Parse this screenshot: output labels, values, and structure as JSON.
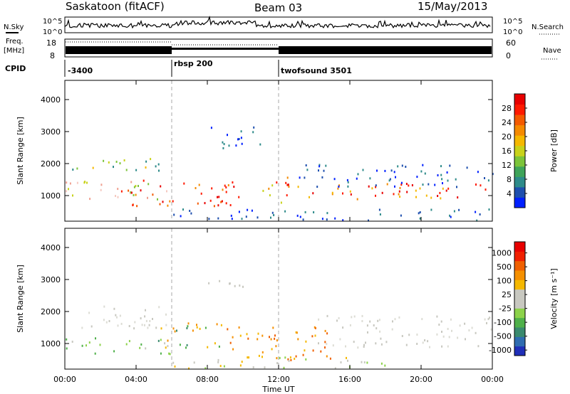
{
  "header": {
    "station": "Saskatoon (fitACF)",
    "beam": "Beam 03",
    "date": "15/May/2013"
  },
  "noise_panel": {
    "left_label": "N.Sky",
    "right_label": "N.Search",
    "left_ticks": [
      "10^5",
      "10^0"
    ],
    "right_ticks": [
      "10^5",
      "10^0"
    ]
  },
  "freq_panel": {
    "left_label_line1": "Freq.",
    "left_label_line2": "[MHz]",
    "right_label": "Nave",
    "left_ticks": [
      "18",
      "8"
    ],
    "right_ticks": [
      "60",
      "0"
    ]
  },
  "cpid": {
    "label": "CPID",
    "segments": [
      {
        "start_hour": 0,
        "text": "-3400"
      },
      {
        "start_hour": 6,
        "text": "rbsp 200"
      },
      {
        "start_hour": 12,
        "text": "twofsound 3501"
      }
    ]
  },
  "chart_data": [
    {
      "type": "heatmap",
      "panel": "power",
      "ylabel": "Slant Range [km]",
      "yticks": [
        1000,
        2000,
        3000,
        4000
      ],
      "ylim": [
        200,
        4600
      ],
      "xlim_hours": [
        0,
        24
      ],
      "colorbar": {
        "label": "Power [dB]",
        "ticks": [
          "4",
          "8",
          "12",
          "16",
          "20",
          "24",
          "28"
        ],
        "colors": [
          "#0020ff",
          "#1e4fae",
          "#2e8b8a",
          "#3fa45a",
          "#7cc43a",
          "#c8d21a",
          "#f5b800",
          "#f58a00",
          "#f45a00",
          "#ff1a00",
          "#e80000"
        ]
      }
    },
    {
      "type": "heatmap",
      "panel": "velocity",
      "ylabel": "Slant Range [km]",
      "yticks": [
        1000,
        2000,
        3000,
        4000
      ],
      "ylim": [
        200,
        4600
      ],
      "xlim_hours": [
        0,
        24
      ],
      "xlabel": "Time UT",
      "xticks": [
        "00:00",
        "04:00",
        "08:00",
        "12:00",
        "16:00",
        "20:00",
        "00:00"
      ],
      "colorbar": {
        "label": "Velocity [m s⁻¹]",
        "ticks": [
          "1000",
          "500",
          "100",
          "25",
          "-25",
          "-100",
          "-500",
          "-1000"
        ],
        "colors": [
          "#1f2fb8",
          "#2f6cb0",
          "#3a8a6e",
          "#4fb04a",
          "#8cd24a",
          "#c8c8c0",
          "#c8c8c0",
          "#f5b800",
          "#f59000",
          "#f06000",
          "#f02000",
          "#e80000"
        ]
      }
    }
  ]
}
